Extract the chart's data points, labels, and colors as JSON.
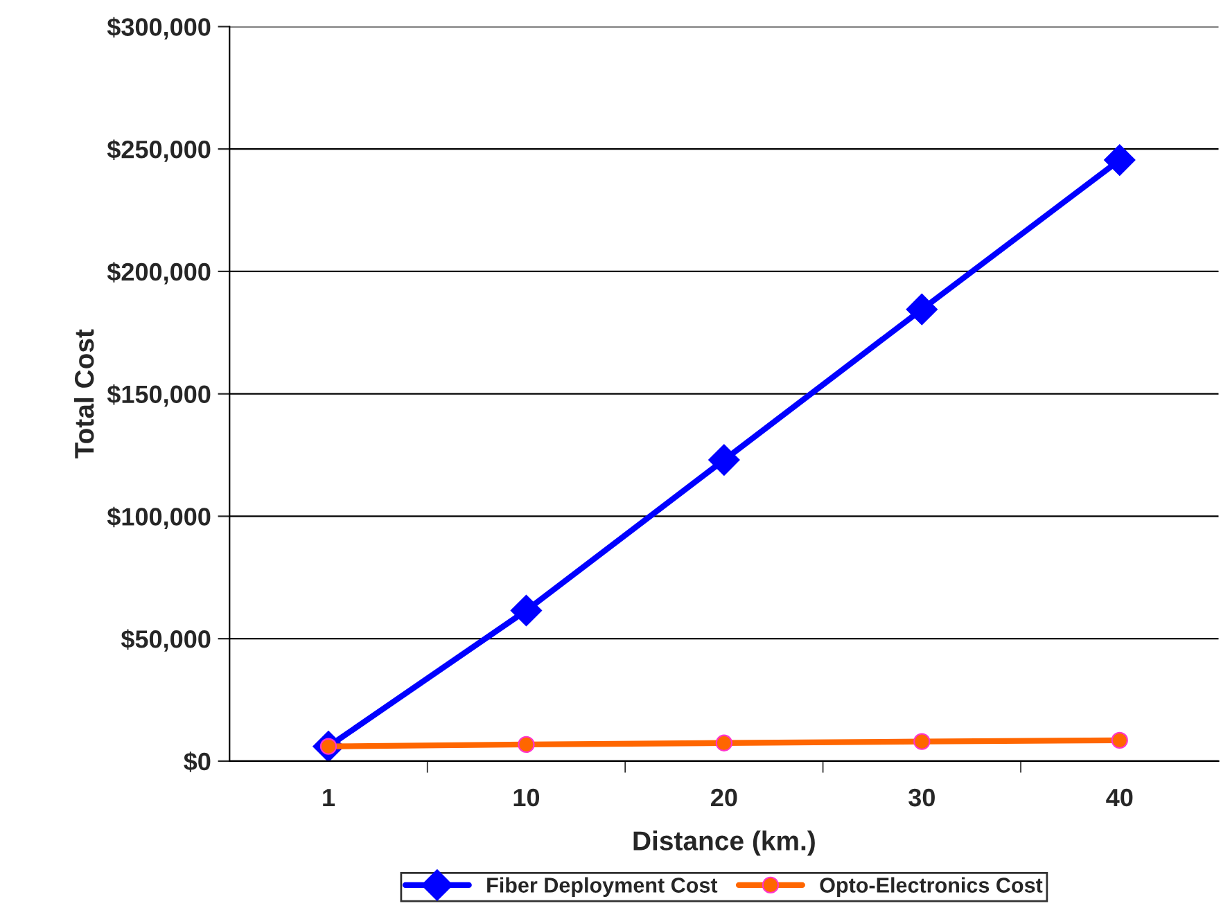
{
  "chart_data": {
    "type": "line",
    "xlabel": "Distance (km.)",
    "ylabel": "Total Cost",
    "categories": [
      "1",
      "10",
      "20",
      "30",
      "40"
    ],
    "series": [
      {
        "name": "Fiber Deployment Cost",
        "color": "#0000ff",
        "marker": "diamond",
        "values": [
          6000,
          61500,
          123000,
          184500,
          245500
        ]
      },
      {
        "name": "Opto-Electronics Cost",
        "color": "#ff6600",
        "marker": "circle",
        "values": [
          6000,
          6800,
          7400,
          8000,
          8500
        ]
      }
    ],
    "ylim": [
      0,
      300000
    ],
    "yticks": [
      {
        "value": 0,
        "label": "$0"
      },
      {
        "value": 50000,
        "label": "$50,000"
      },
      {
        "value": 100000,
        "label": "$100,000"
      },
      {
        "value": 150000,
        "label": "$150,000"
      },
      {
        "value": 200000,
        "label": "$200,000"
      },
      {
        "value": 250000,
        "label": "$250,000"
      },
      {
        "value": 300000,
        "label": "$300,000"
      }
    ],
    "grid": "y",
    "legend": "bottom",
    "line_style": "solid"
  }
}
